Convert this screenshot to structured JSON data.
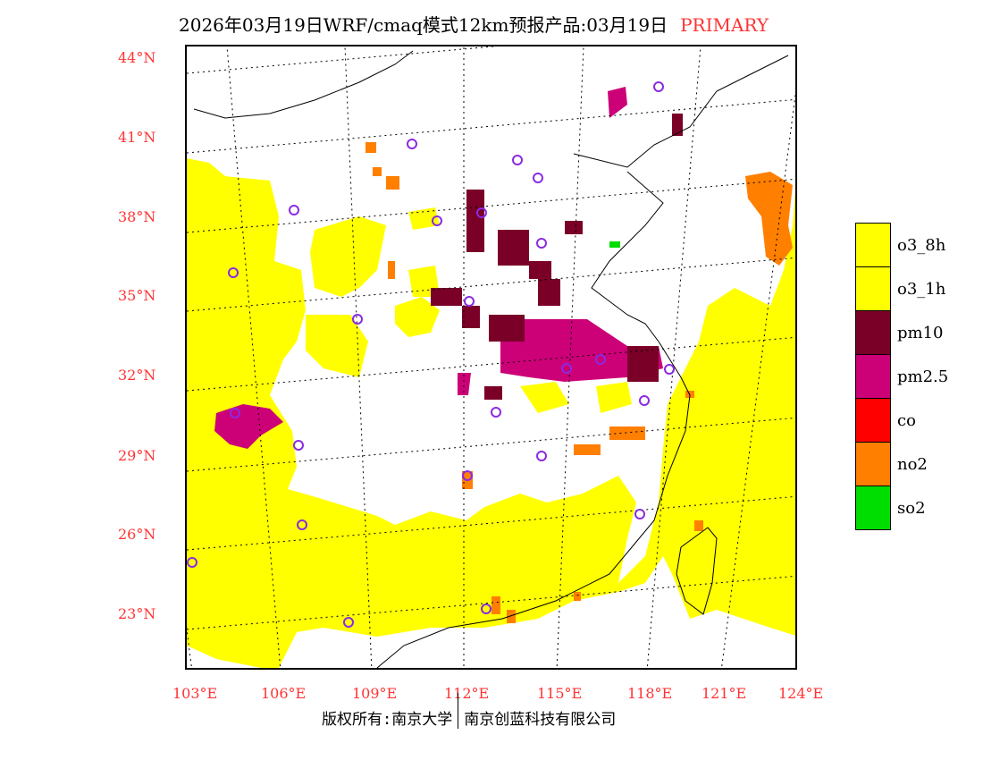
{
  "header": {
    "title": "2026年03月19日WRF/cmaq模式12km预报产品:03月19日",
    "mode": "PRIMARY"
  },
  "axes": {
    "lat_labels": [
      "44°N",
      "41°N",
      "38°N",
      "35°N",
      "32°N",
      "29°N",
      "26°N",
      "23°N"
    ],
    "lon_labels": [
      "103°E",
      "106°E",
      "109°E",
      "112°E",
      "115°E",
      "118°E",
      "121°E",
      "124°E"
    ]
  },
  "legend": [
    {
      "label": "o3_8h",
      "color": "#ffff00"
    },
    {
      "label": "o3_1h",
      "color": "#ffff00"
    },
    {
      "label": "pm10",
      "color": "#7a0028"
    },
    {
      "label": "pm2.5",
      "color": "#cc0077"
    },
    {
      "label": "co",
      "color": "#ff0000"
    },
    {
      "label": "no2",
      "color": "#ff7f00"
    },
    {
      "label": "so2",
      "color": "#00dd00"
    }
  ],
  "footer": {
    "left": "版权所有:南京大学",
    "right": "南京创蓝科技有限公司"
  }
}
